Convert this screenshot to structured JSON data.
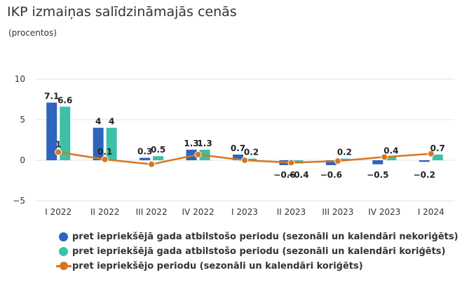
{
  "title": "IKP izmaiņas salīdzināmajās cenās",
  "subtitle": "(procentos)",
  "colors": {
    "nsa": "#2f64bd",
    "sa": "#3fbfa6",
    "qoq": "#d6771f",
    "grid": "#e2e2e2"
  },
  "chart_data": {
    "type": "bar",
    "title": "IKP izmaiņas salīdzināmajās cenās",
    "subtitle": "(procentos)",
    "categories": [
      "I 2022",
      "II 2022",
      "III 2022",
      "IV 2022",
      "I 2023",
      "II 2023",
      "III 2023",
      "IV 2023",
      "I 2024"
    ],
    "ylim": [
      -5,
      10
    ],
    "yticks": [
      -5,
      0,
      5,
      10
    ],
    "grid": true,
    "legend": "bottom",
    "series": [
      {
        "name": "pret iepriekšējā gada atbilstošo periodu (sezonāli un kalendāri nekoriģēts)",
        "type": "bar",
        "values": [
          7.1,
          4,
          0.3,
          1.3,
          0.7,
          -0.6,
          -0.6,
          -0.5,
          -0.2
        ],
        "labels": [
          "7.1",
          "4",
          "0.3",
          "1.3",
          "0.7",
          "−0.6",
          "−0.6",
          "−0.5",
          "−0.2"
        ]
      },
      {
        "name": "pret iepriekšējā gada atbilstošo periodu (sezonāli un kalendāri koriģēts)",
        "type": "bar",
        "values": [
          6.6,
          4,
          0.5,
          1.3,
          0.2,
          -0.4,
          0.2,
          0.4,
          0.7
        ],
        "labels": [
          "6.6",
          "4",
          "0.5",
          "1.3",
          "0.2",
          "−0.4",
          "0.2",
          "0.4",
          "0.7"
        ]
      },
      {
        "name": "pret iepriekšējo periodu (sezonāli un kalendāri koriģēts)",
        "type": "line",
        "values": [
          1,
          0.1,
          -0.5,
          0.7,
          0.0,
          -0.3,
          -0.1,
          0.4,
          0.8
        ],
        "labels": [
          "1",
          "0.1",
          "",
          "",
          "",
          "",
          "",
          "",
          ""
        ]
      }
    ]
  }
}
